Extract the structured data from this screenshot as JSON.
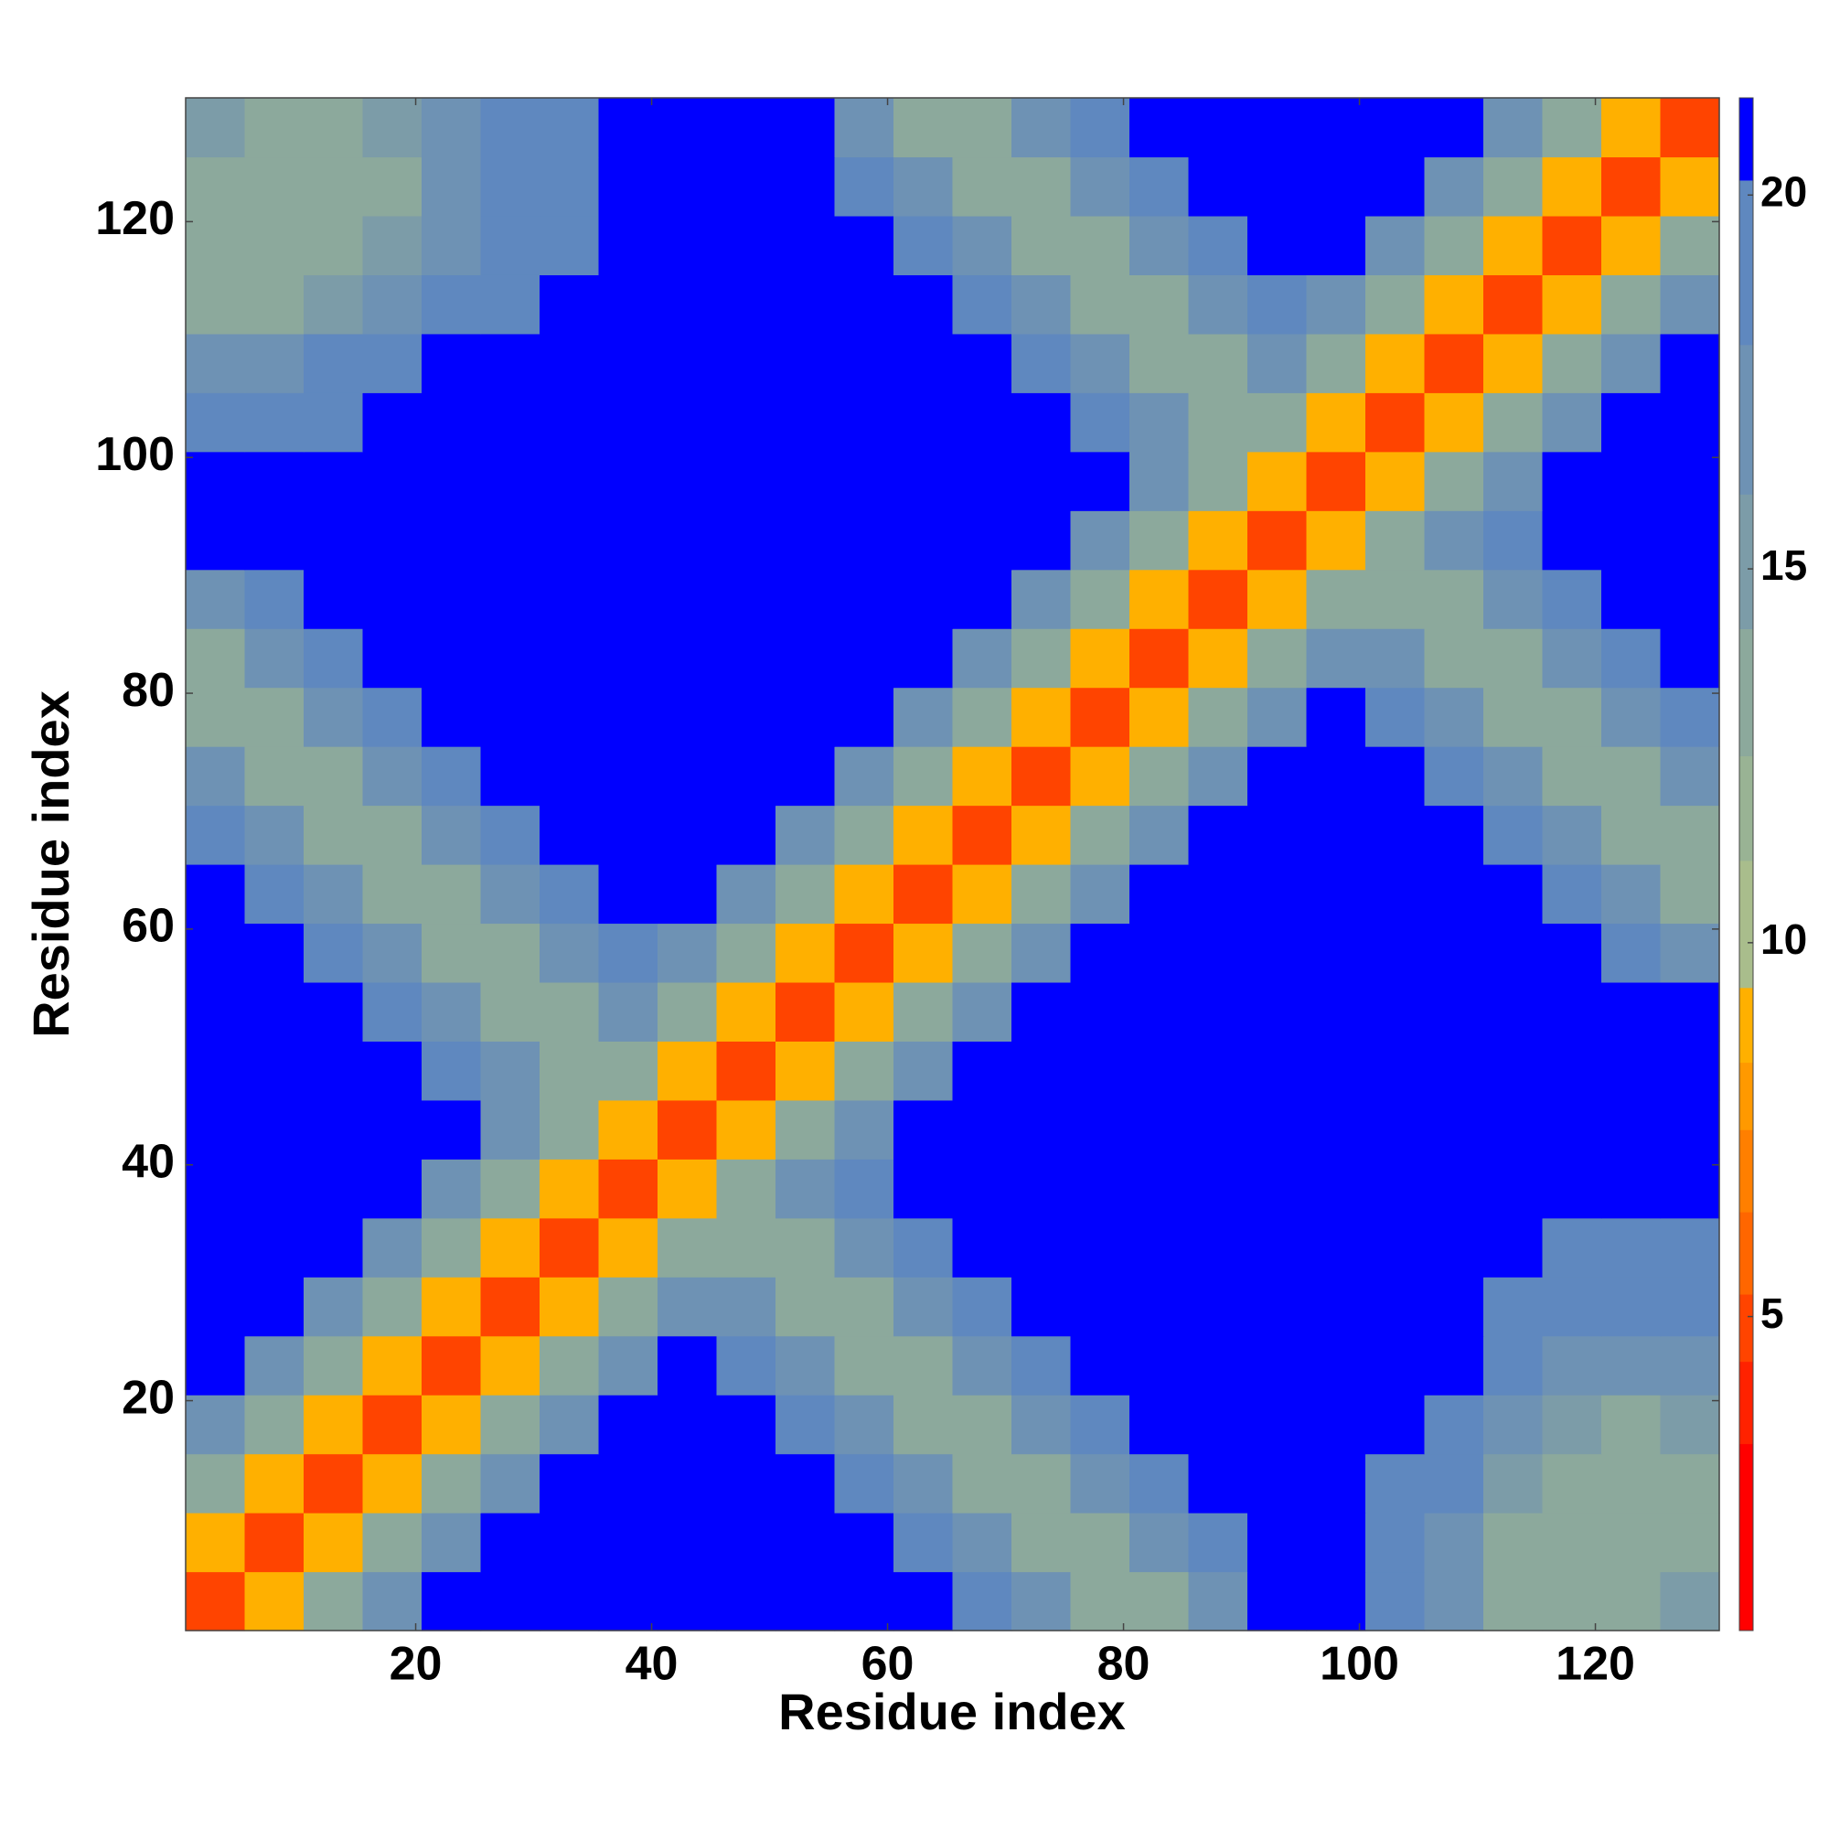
{
  "chart_data": {
    "type": "heatmap",
    "xlabel": "Residue index",
    "ylabel": "Residue index",
    "xlim": [
      0.5,
      130.5
    ],
    "ylim": [
      0.5,
      130.5
    ],
    "xticks": [
      20,
      40,
      60,
      80,
      100,
      120
    ],
    "yticks": [
      20,
      40,
      60,
      80,
      100,
      120
    ],
    "xbins": [
      0.5,
      5.5,
      10.5,
      15.5,
      20.5,
      25.5,
      30.5,
      35.5,
      40.5,
      45.5,
      50.5,
      55.5,
      60.5,
      65.5,
      70.5,
      75.5,
      80.5,
      85.5,
      90.5,
      95.5,
      100.5,
      105.5,
      110.5,
      115.5,
      120.5,
      125.5,
      130.5
    ],
    "ybins": [
      0.5,
      5.5,
      10.5,
      15.5,
      20.5,
      25.5,
      30.5,
      35.5,
      40.5,
      45.5,
      50.5,
      55.5,
      60.5,
      65.5,
      70.5,
      75.5,
      80.5,
      85.5,
      90.5,
      95.5,
      100.5,
      105.5,
      110.5,
      115.5,
      120.5,
      125.5,
      130.5
    ],
    "zlim": [
      0.8,
      21.3
    ],
    "zticks": [
      5,
      10,
      15,
      20
    ],
    "colorscale": [
      {
        "from": 0.8,
        "color": "#ff0000"
      },
      {
        "from": 3.3,
        "color": "#ff2200"
      },
      {
        "from": 4.4,
        "color": "#ff4400"
      },
      {
        "from": 5.3,
        "color": "#ff6600"
      },
      {
        "from": 6.4,
        "color": "#ff7f00"
      },
      {
        "from": 7.5,
        "color": "#ff9900"
      },
      {
        "from": 8.4,
        "color": "#ffb000"
      },
      {
        "from": 9.4,
        "color": "#a9bd8c"
      },
      {
        "from": 11.1,
        "color": "#99b394"
      },
      {
        "from": 12.5,
        "color": "#8ca99c"
      },
      {
        "from": 14.2,
        "color": "#7c9ca8"
      },
      {
        "from": 16,
        "color": "#6e92b4"
      },
      {
        "from": 18,
        "color": "#5f88bf"
      },
      {
        "from": 20.2,
        "color": "#0000ff"
      }
    ],
    "z": [
      [
        5,
        9,
        13,
        17,
        21,
        21,
        21,
        21,
        21,
        21,
        21,
        21,
        21,
        18,
        16,
        13,
        13,
        16,
        21,
        21,
        18,
        16,
        14,
        13,
        14,
        15
      ],
      [
        9,
        5,
        9,
        13,
        17,
        21,
        21,
        21,
        21,
        21,
        21,
        21,
        18,
        16,
        13,
        13,
        16,
        19,
        21,
        21,
        19,
        17,
        14,
        13,
        13,
        13
      ],
      [
        13,
        9,
        5,
        9,
        13,
        17,
        21,
        21,
        21,
        21,
        21,
        18,
        16,
        13,
        13,
        16,
        19,
        21,
        21,
        21,
        20,
        18,
        15,
        14,
        13,
        13
      ],
      [
        17,
        13,
        9,
        5,
        9,
        13,
        17,
        21,
        21,
        21,
        18,
        16,
        13,
        13,
        16,
        19,
        21,
        21,
        21,
        21,
        21,
        20,
        17,
        15,
        14,
        15
      ],
      [
        21,
        17,
        13,
        9,
        5,
        9,
        13,
        17,
        21,
        18,
        16,
        13,
        13,
        16,
        19,
        21,
        21,
        21,
        21,
        21,
        21,
        21,
        19,
        17,
        16,
        16
      ],
      [
        21,
        21,
        17,
        13,
        9,
        5,
        9,
        13,
        17,
        16,
        13,
        13,
        16,
        19,
        21,
        21,
        21,
        21,
        21,
        21,
        21,
        21,
        20,
        19,
        18,
        18
      ],
      [
        21,
        21,
        21,
        17,
        13,
        9,
        5,
        9,
        13,
        13,
        13,
        16,
        19,
        21,
        21,
        21,
        21,
        21,
        21,
        21,
        21,
        21,
        21,
        20,
        19,
        19
      ],
      [
        21,
        21,
        21,
        21,
        17,
        13,
        9,
        5,
        9,
        13,
        16,
        19,
        21,
        21,
        21,
        21,
        21,
        21,
        21,
        21,
        21,
        21,
        21,
        21,
        21,
        21
      ],
      [
        21,
        21,
        21,
        21,
        21,
        17,
        13,
        9,
        5,
        9,
        13,
        17,
        21,
        21,
        21,
        21,
        21,
        21,
        21,
        21,
        21,
        21,
        21,
        21,
        21,
        21
      ],
      [
        21,
        21,
        21,
        21,
        18,
        16,
        13,
        13,
        9,
        5,
        9,
        13,
        17,
        21,
        21,
        21,
        21,
        21,
        21,
        21,
        21,
        21,
        21,
        21,
        21,
        21
      ],
      [
        21,
        21,
        21,
        18,
        16,
        13,
        13,
        16,
        13,
        9,
        5,
        9,
        13,
        17,
        21,
        21,
        21,
        21,
        21,
        21,
        21,
        21,
        21,
        21,
        21,
        21
      ],
      [
        21,
        21,
        18,
        16,
        13,
        13,
        16,
        19,
        17,
        13,
        9,
        5,
        9,
        13,
        17,
        21,
        21,
        21,
        21,
        21,
        21,
        21,
        21,
        21,
        18,
        16
      ],
      [
        21,
        18,
        16,
        13,
        13,
        16,
        19,
        21,
        21,
        17,
        13,
        9,
        5,
        9,
        13,
        17,
        21,
        21,
        21,
        21,
        21,
        21,
        21,
        18,
        16,
        13
      ],
      [
        18,
        16,
        13,
        13,
        16,
        19,
        21,
        21,
        21,
        21,
        17,
        13,
        9,
        5,
        9,
        13,
        17,
        21,
        21,
        21,
        21,
        21,
        18,
        16,
        13,
        13
      ],
      [
        16,
        13,
        13,
        16,
        19,
        21,
        21,
        21,
        21,
        21,
        21,
        17,
        13,
        9,
        5,
        9,
        13,
        17,
        21,
        21,
        21,
        18,
        16,
        13,
        13,
        16
      ],
      [
        13,
        13,
        16,
        19,
        21,
        21,
        21,
        21,
        21,
        21,
        21,
        21,
        17,
        13,
        9,
        5,
        9,
        13,
        17,
        21,
        18,
        16,
        13,
        13,
        16,
        19
      ],
      [
        13,
        16,
        19,
        21,
        21,
        21,
        21,
        21,
        21,
        21,
        21,
        21,
        21,
        17,
        13,
        9,
        5,
        9,
        13,
        17,
        16,
        13,
        13,
        16,
        19,
        21
      ],
      [
        16,
        19,
        21,
        21,
        21,
        21,
        21,
        21,
        21,
        21,
        21,
        21,
        21,
        21,
        17,
        13,
        9,
        5,
        9,
        13,
        13,
        13,
        16,
        19,
        21,
        21
      ],
      [
        21,
        21,
        21,
        21,
        21,
        21,
        21,
        21,
        21,
        21,
        21,
        21,
        21,
        21,
        21,
        17,
        13,
        9,
        5,
        9,
        13,
        16,
        19,
        21,
        21,
        21
      ],
      [
        21,
        21,
        21,
        21,
        21,
        21,
        21,
        21,
        21,
        21,
        21,
        21,
        21,
        21,
        21,
        21,
        17,
        13,
        9,
        5,
        9,
        13,
        17,
        21,
        21,
        21
      ],
      [
        18,
        19,
        20,
        21,
        21,
        21,
        21,
        21,
        21,
        21,
        21,
        21,
        21,
        21,
        21,
        18,
        16,
        13,
        13,
        9,
        5,
        9,
        13,
        17,
        21,
        21
      ],
      [
        16,
        17,
        18,
        20,
        21,
        21,
        21,
        21,
        21,
        21,
        21,
        21,
        21,
        21,
        18,
        16,
        13,
        13,
        16,
        13,
        9,
        5,
        9,
        13,
        17,
        21
      ],
      [
        14,
        14,
        15,
        17,
        19,
        20,
        21,
        21,
        21,
        21,
        21,
        21,
        21,
        18,
        16,
        13,
        13,
        16,
        19,
        17,
        13,
        9,
        5,
        9,
        13,
        17
      ],
      [
        13,
        13,
        14,
        15,
        17,
        19,
        20,
        21,
        21,
        21,
        21,
        21,
        18,
        16,
        13,
        13,
        16,
        19,
        21,
        21,
        17,
        13,
        9,
        5,
        9,
        13
      ],
      [
        14,
        13,
        13,
        14,
        16,
        18,
        19,
        21,
        21,
        21,
        21,
        18,
        16,
        13,
        13,
        16,
        19,
        21,
        21,
        21,
        21,
        17,
        13,
        9,
        5,
        9
      ],
      [
        15,
        13,
        13,
        15,
        16,
        18,
        19,
        21,
        21,
        21,
        21,
        16,
        13,
        13,
        16,
        19,
        21,
        21,
        21,
        21,
        21,
        21,
        17,
        13,
        9,
        5
      ]
    ]
  }
}
